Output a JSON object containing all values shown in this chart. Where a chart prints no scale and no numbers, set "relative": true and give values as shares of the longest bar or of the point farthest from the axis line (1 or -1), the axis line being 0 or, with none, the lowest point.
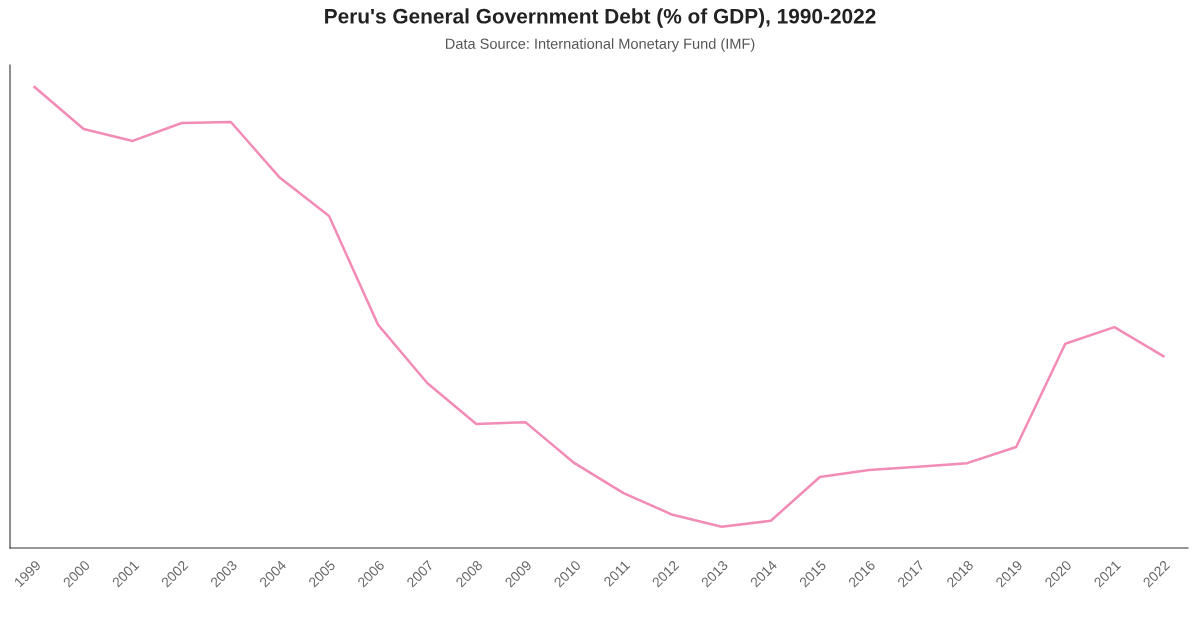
{
  "chart_data": {
    "type": "line",
    "title": "Peru's General Government Debt (% of GDP), 1990-2022",
    "subtitle": "Data Source: International Monetary Fund (IMF)",
    "relative": true,
    "categories": [
      "1999",
      "2000",
      "2001",
      "2002",
      "2003",
      "2004",
      "2005",
      "2006",
      "2007",
      "2008",
      "2009",
      "2010",
      "2011",
      "2012",
      "2013",
      "2014",
      "2015",
      "2016",
      "2017",
      "2018",
      "2019",
      "2020",
      "2021",
      "2022"
    ],
    "series": [
      {
        "color": "#f28cb6",
        "values": [
          1.0,
          0.909,
          0.883,
          0.922,
          0.924,
          0.803,
          0.72,
          0.484,
          0.358,
          0.269,
          0.273,
          0.184,
          0.119,
          0.072,
          0.046,
          0.059,
          0.154,
          0.169,
          0.176,
          0.184,
          0.219,
          0.443,
          0.479,
          0.416
        ]
      }
    ],
    "grid": false,
    "legend": false,
    "marker": "none",
    "line_style": "solid"
  }
}
